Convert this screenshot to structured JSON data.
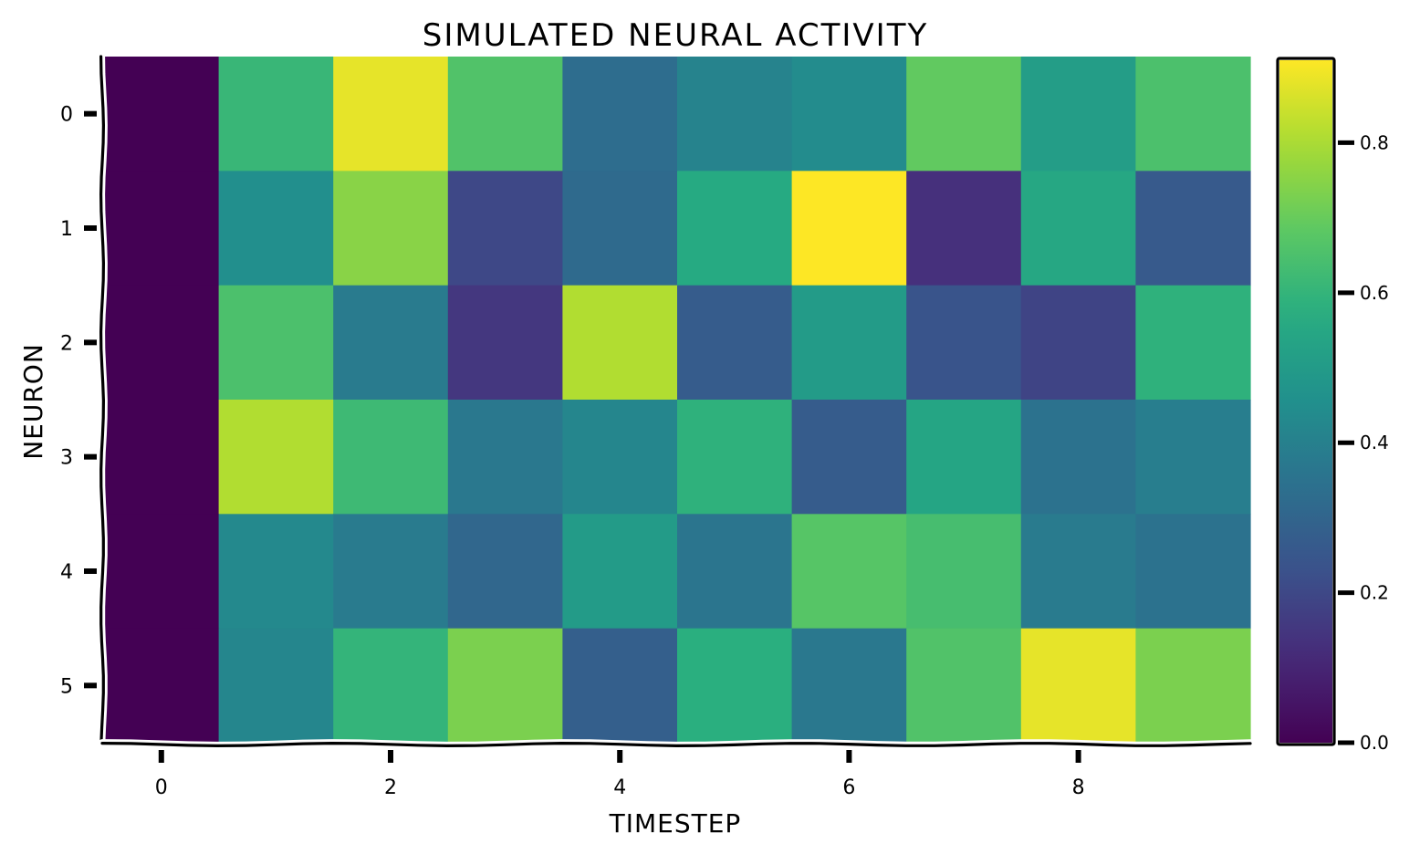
{
  "chart_data": {
    "type": "heatmap",
    "title": "SIMULATED NEURAL ACTIVITY",
    "xlabel": "TIMESTEP",
    "ylabel": "NEURON",
    "x_ticks": [
      "0",
      "2",
      "4",
      "6",
      "8"
    ],
    "y_ticks": [
      "0",
      "1",
      "2",
      "3",
      "4",
      "5"
    ],
    "colorscale": "viridis",
    "vmin": 0.0,
    "vmax": 0.91,
    "colorbar_ticks": [
      "0.0",
      "0.2",
      "0.4",
      "0.6",
      "0.8"
    ],
    "values": [
      [
        0.0,
        0.61,
        0.88,
        0.66,
        0.33,
        0.41,
        0.44,
        0.69,
        0.51,
        0.65
      ],
      [
        0.0,
        0.45,
        0.75,
        0.2,
        0.32,
        0.56,
        0.91,
        0.13,
        0.55,
        0.26
      ],
      [
        0.0,
        0.65,
        0.38,
        0.15,
        0.81,
        0.27,
        0.5,
        0.24,
        0.19,
        0.59
      ],
      [
        0.0,
        0.81,
        0.62,
        0.37,
        0.42,
        0.59,
        0.27,
        0.54,
        0.35,
        0.39
      ],
      [
        0.0,
        0.43,
        0.38,
        0.31,
        0.5,
        0.36,
        0.67,
        0.64,
        0.38,
        0.35
      ],
      [
        0.0,
        0.42,
        0.6,
        0.73,
        0.28,
        0.58,
        0.37,
        0.66,
        0.88,
        0.73
      ]
    ]
  }
}
